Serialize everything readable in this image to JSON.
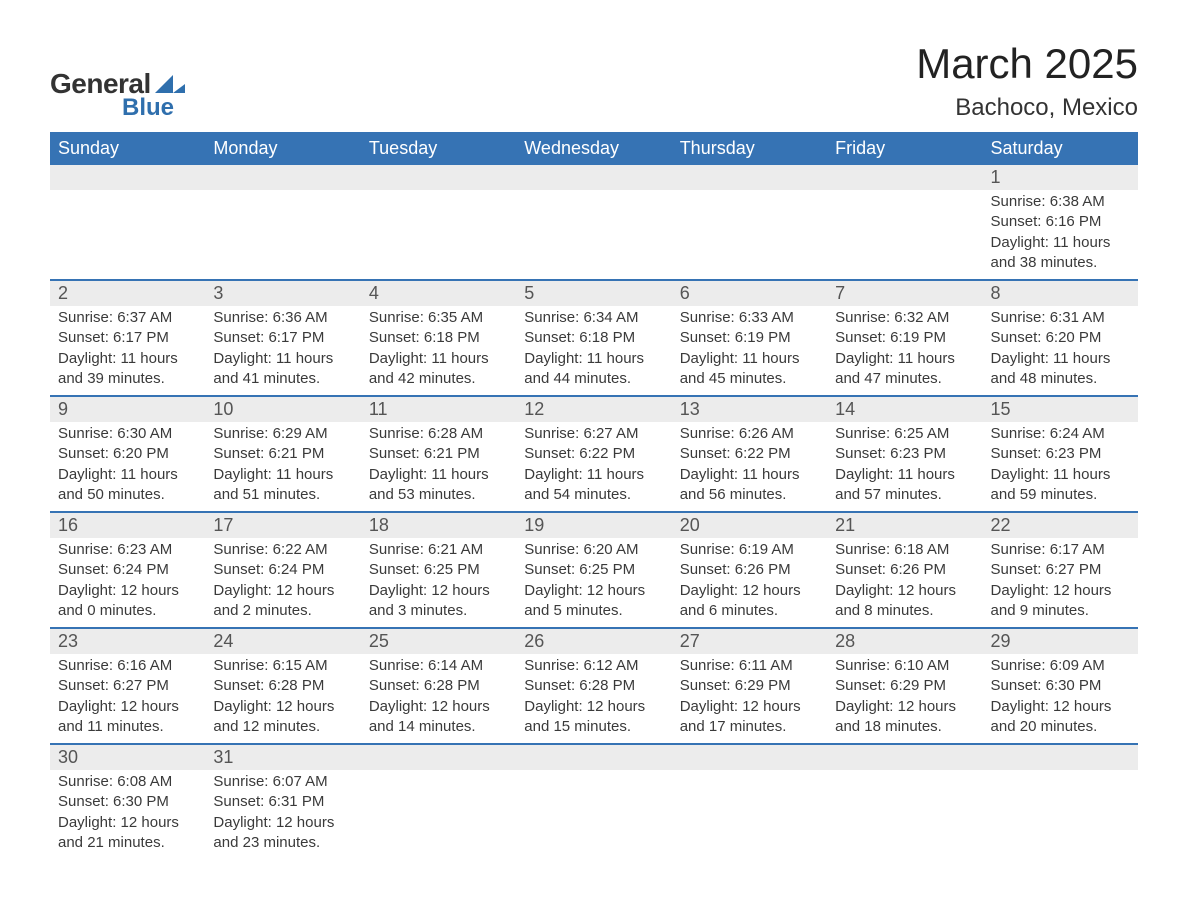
{
  "logo": {
    "general": "General",
    "blue": "Blue",
    "shape_color": "#2f6fad"
  },
  "title": "March 2025",
  "location": "Bachoco, Mexico",
  "colors": {
    "header_bg": "#3673b4",
    "header_text": "#ffffff",
    "daynum_bg": "#ececec",
    "row_divider": "#3673b4",
    "body_text": "#3a3a3a"
  },
  "weekdays": [
    "Sunday",
    "Monday",
    "Tuesday",
    "Wednesday",
    "Thursday",
    "Friday",
    "Saturday"
  ],
  "labels": {
    "sunrise": "Sunrise:",
    "sunset": "Sunset:",
    "daylight": "Daylight:"
  },
  "weeks": [
    [
      null,
      null,
      null,
      null,
      null,
      null,
      {
        "n": "1",
        "sunrise": "6:38 AM",
        "sunset": "6:16 PM",
        "daylight": "11 hours and 38 minutes."
      }
    ],
    [
      {
        "n": "2",
        "sunrise": "6:37 AM",
        "sunset": "6:17 PM",
        "daylight": "11 hours and 39 minutes."
      },
      {
        "n": "3",
        "sunrise": "6:36 AM",
        "sunset": "6:17 PM",
        "daylight": "11 hours and 41 minutes."
      },
      {
        "n": "4",
        "sunrise": "6:35 AM",
        "sunset": "6:18 PM",
        "daylight": "11 hours and 42 minutes."
      },
      {
        "n": "5",
        "sunrise": "6:34 AM",
        "sunset": "6:18 PM",
        "daylight": "11 hours and 44 minutes."
      },
      {
        "n": "6",
        "sunrise": "6:33 AM",
        "sunset": "6:19 PM",
        "daylight": "11 hours and 45 minutes."
      },
      {
        "n": "7",
        "sunrise": "6:32 AM",
        "sunset": "6:19 PM",
        "daylight": "11 hours and 47 minutes."
      },
      {
        "n": "8",
        "sunrise": "6:31 AM",
        "sunset": "6:20 PM",
        "daylight": "11 hours and 48 minutes."
      }
    ],
    [
      {
        "n": "9",
        "sunrise": "6:30 AM",
        "sunset": "6:20 PM",
        "daylight": "11 hours and 50 minutes."
      },
      {
        "n": "10",
        "sunrise": "6:29 AM",
        "sunset": "6:21 PM",
        "daylight": "11 hours and 51 minutes."
      },
      {
        "n": "11",
        "sunrise": "6:28 AM",
        "sunset": "6:21 PM",
        "daylight": "11 hours and 53 minutes."
      },
      {
        "n": "12",
        "sunrise": "6:27 AM",
        "sunset": "6:22 PM",
        "daylight": "11 hours and 54 minutes."
      },
      {
        "n": "13",
        "sunrise": "6:26 AM",
        "sunset": "6:22 PM",
        "daylight": "11 hours and 56 minutes."
      },
      {
        "n": "14",
        "sunrise": "6:25 AM",
        "sunset": "6:23 PM",
        "daylight": "11 hours and 57 minutes."
      },
      {
        "n": "15",
        "sunrise": "6:24 AM",
        "sunset": "6:23 PM",
        "daylight": "11 hours and 59 minutes."
      }
    ],
    [
      {
        "n": "16",
        "sunrise": "6:23 AM",
        "sunset": "6:24 PM",
        "daylight": "12 hours and 0 minutes."
      },
      {
        "n": "17",
        "sunrise": "6:22 AM",
        "sunset": "6:24 PM",
        "daylight": "12 hours and 2 minutes."
      },
      {
        "n": "18",
        "sunrise": "6:21 AM",
        "sunset": "6:25 PM",
        "daylight": "12 hours and 3 minutes."
      },
      {
        "n": "19",
        "sunrise": "6:20 AM",
        "sunset": "6:25 PM",
        "daylight": "12 hours and 5 minutes."
      },
      {
        "n": "20",
        "sunrise": "6:19 AM",
        "sunset": "6:26 PM",
        "daylight": "12 hours and 6 minutes."
      },
      {
        "n": "21",
        "sunrise": "6:18 AM",
        "sunset": "6:26 PM",
        "daylight": "12 hours and 8 minutes."
      },
      {
        "n": "22",
        "sunrise": "6:17 AM",
        "sunset": "6:27 PM",
        "daylight": "12 hours and 9 minutes."
      }
    ],
    [
      {
        "n": "23",
        "sunrise": "6:16 AM",
        "sunset": "6:27 PM",
        "daylight": "12 hours and 11 minutes."
      },
      {
        "n": "24",
        "sunrise": "6:15 AM",
        "sunset": "6:28 PM",
        "daylight": "12 hours and 12 minutes."
      },
      {
        "n": "25",
        "sunrise": "6:14 AM",
        "sunset": "6:28 PM",
        "daylight": "12 hours and 14 minutes."
      },
      {
        "n": "26",
        "sunrise": "6:12 AM",
        "sunset": "6:28 PM",
        "daylight": "12 hours and 15 minutes."
      },
      {
        "n": "27",
        "sunrise": "6:11 AM",
        "sunset": "6:29 PM",
        "daylight": "12 hours and 17 minutes."
      },
      {
        "n": "28",
        "sunrise": "6:10 AM",
        "sunset": "6:29 PM",
        "daylight": "12 hours and 18 minutes."
      },
      {
        "n": "29",
        "sunrise": "6:09 AM",
        "sunset": "6:30 PM",
        "daylight": "12 hours and 20 minutes."
      }
    ],
    [
      {
        "n": "30",
        "sunrise": "6:08 AM",
        "sunset": "6:30 PM",
        "daylight": "12 hours and 21 minutes."
      },
      {
        "n": "31",
        "sunrise": "6:07 AM",
        "sunset": "6:31 PM",
        "daylight": "12 hours and 23 minutes."
      },
      null,
      null,
      null,
      null,
      null
    ]
  ]
}
